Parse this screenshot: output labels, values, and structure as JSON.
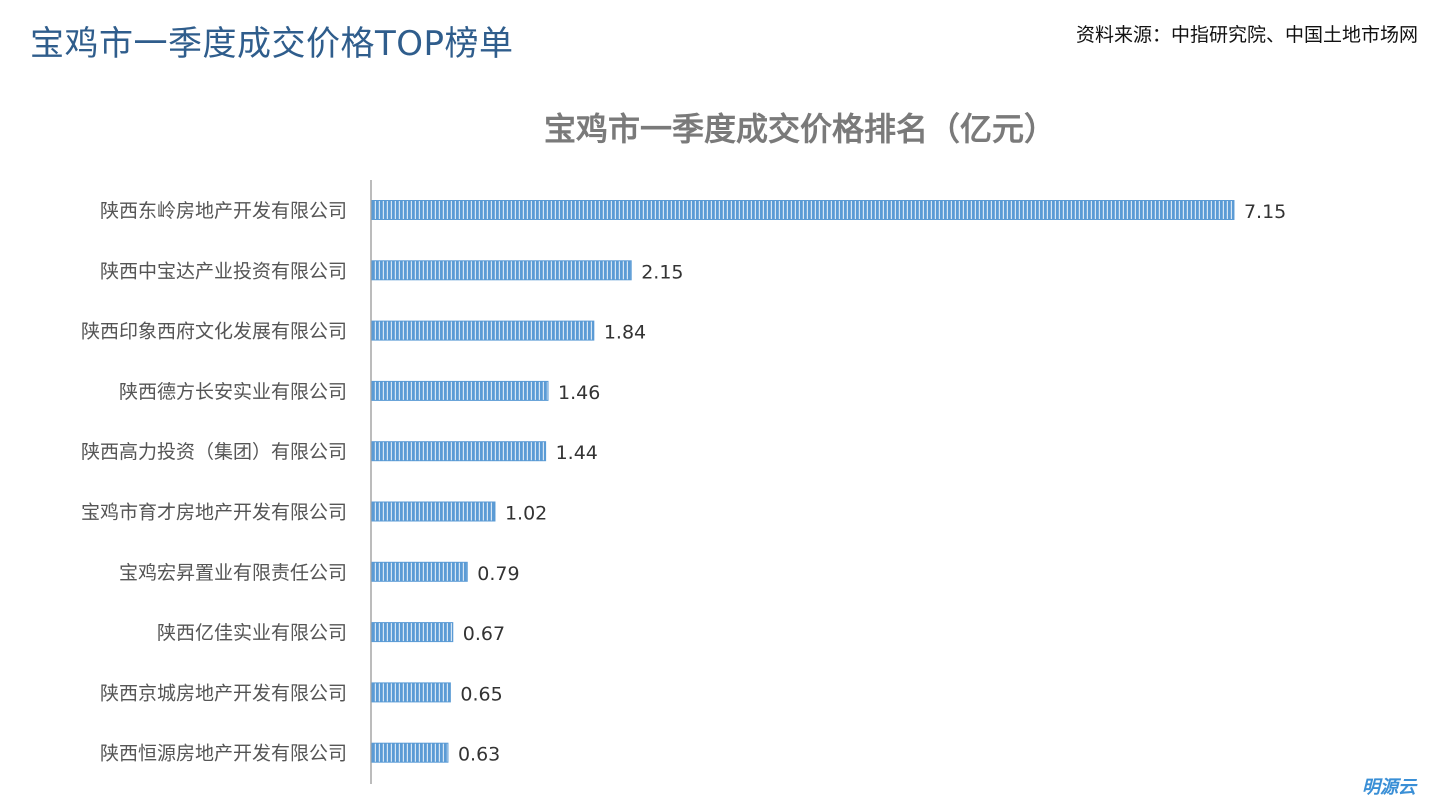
{
  "page": {
    "title": "宝鸡市一季度成交价格TOP榜单",
    "source": "资料来源：中指研究院、中国土地市场网",
    "brand": "明源云"
  },
  "colors": {
    "title": "#2f5d8c",
    "bar": "#5b9bd5",
    "bar_stripe": "#ffffff",
    "axis": "#a6a6a6",
    "chart_title": "#7a7a7a"
  },
  "chart_data": {
    "type": "bar",
    "orientation": "horizontal",
    "title": "宝鸡市一季度成交价格排名（亿元）",
    "categories": [
      "陕西东岭房地产开发有限公司",
      "陕西中宝达产业投资有限公司",
      "陕西印象西府文化发展有限公司",
      "陕西德方长安实业有限公司",
      "陕西高力投资（集团）有限公司",
      "宝鸡市育才房地产开发有限公司",
      "宝鸡宏昇置业有限责任公司",
      "陕西亿佳实业有限公司",
      "陕西京城房地产开发有限公司",
      "陕西恒源房地产开发有限公司"
    ],
    "values": [
      7.15,
      2.15,
      1.84,
      1.46,
      1.44,
      1.02,
      0.79,
      0.67,
      0.65,
      0.63
    ],
    "value_labels": [
      "7.15",
      "2.15",
      "1.84",
      "1.46",
      "1.44",
      "1.02",
      "0.79",
      "0.67",
      "0.65",
      "0.63"
    ],
    "xlim": [
      0,
      7.2
    ],
    "grid": false,
    "legend": "none",
    "data_labels": true
  }
}
